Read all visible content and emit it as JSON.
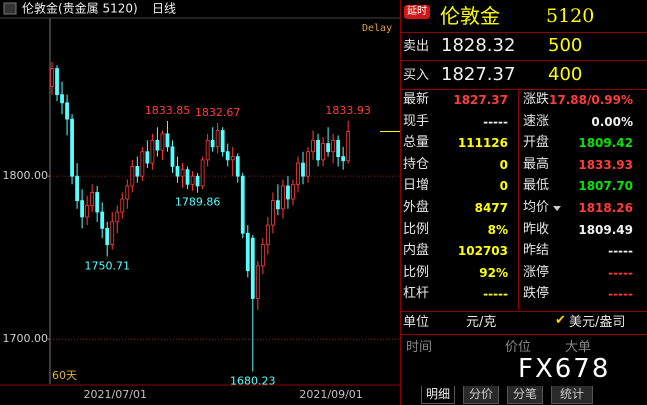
{
  "top_bar": {
    "instrument": "伦敦金(贵金属 5120)",
    "period": "日线",
    "delay": "Delay",
    "range": "60天"
  },
  "chart_data": {
    "type": "candlestick",
    "categories": [
      null,
      null,
      null,
      null,
      null,
      null,
      null,
      null,
      null,
      null,
      null,
      null,
      null,
      "2021/07/01",
      null,
      null,
      null,
      null,
      null,
      null,
      null,
      null,
      null,
      null,
      null,
      null,
      null,
      null,
      null,
      null,
      null,
      null,
      null,
      null,
      null,
      null,
      null,
      null,
      null,
      null,
      null,
      null,
      null,
      null,
      null,
      null,
      null,
      null,
      null,
      null,
      null,
      null,
      null,
      null,
      null,
      null,
      "2021/09/01",
      null,
      null,
      null
    ],
    "open": [
      1855,
      1866,
      1850,
      1845,
      1835,
      1800,
      1785,
      1775,
      1782,
      1790,
      1778,
      1768,
      1758,
      1772,
      1778,
      1786,
      1794,
      1806,
      1800,
      1815,
      1808,
      1822,
      1816,
      1826,
      1818,
      1806,
      1800,
      1804,
      1795,
      1800,
      1794,
      1810,
      1822,
      1818,
      1828,
      1815,
      1810,
      1812,
      1800,
      1765,
      1762,
      1725,
      1745,
      1758,
      1770,
      1785,
      1780,
      1794,
      1786,
      1795,
      1808,
      1800,
      1815,
      1822,
      1810,
      1820,
      1815,
      1822,
      1812,
      1809.42
    ],
    "high": [
      1870,
      1868,
      1858,
      1850,
      1838,
      1808,
      1792,
      1788,
      1795,
      1794,
      1784,
      1772,
      1778,
      1782,
      1790,
      1798,
      1810,
      1812,
      1818,
      1822,
      1826,
      1830,
      1828,
      1833.85,
      1822,
      1812,
      1808,
      1806,
      1803,
      1802,
      1812,
      1826,
      1830,
      1832.67,
      1830,
      1820,
      1818,
      1814,
      1802,
      1770,
      1764,
      1748,
      1762,
      1775,
      1790,
      1795,
      1798,
      1800,
      1798,
      1812,
      1815,
      1818,
      1828,
      1826,
      1824,
      1830,
      1826,
      1825,
      1818,
      1833.93
    ],
    "low": [
      1850,
      1846,
      1838,
      1825,
      1795,
      1780,
      1768,
      1770,
      1778,
      1772,
      1762,
      1750.71,
      1755,
      1765,
      1774,
      1780,
      1790,
      1796,
      1797,
      1805,
      1804,
      1812,
      1810,
      1815,
      1802,
      1796,
      1793,
      1792,
      1791,
      1789.86,
      1792,
      1806,
      1815,
      1814,
      1812,
      1806,
      1800,
      1796,
      1762,
      1738,
      1680.23,
      1718,
      1740,
      1752,
      1765,
      1776,
      1774,
      1780,
      1782,
      1790,
      1795,
      1796,
      1810,
      1806,
      1806,
      1812,
      1808,
      1806,
      1804,
      1807.7
    ],
    "close": [
      1866,
      1850,
      1845,
      1835,
      1800,
      1785,
      1775,
      1782,
      1790,
      1778,
      1768,
      1758,
      1772,
      1778,
      1786,
      1794,
      1806,
      1800,
      1815,
      1808,
      1822,
      1816,
      1826,
      1818,
      1806,
      1800,
      1804,
      1795,
      1800,
      1794,
      1810,
      1822,
      1818,
      1828,
      1815,
      1810,
      1812,
      1800,
      1765,
      1742,
      1725,
      1745,
      1758,
      1770,
      1785,
      1780,
      1794,
      1786,
      1795,
      1808,
      1800,
      1815,
      1822,
      1810,
      1820,
      1815,
      1822,
      1812,
      1809.49,
      1827.37
    ],
    "up_color": "#ff3c3c",
    "down_color": "#54ffff",
    "annotations": [
      {
        "index": 11,
        "field": "low"
      },
      {
        "index": 23,
        "field": "high"
      },
      {
        "index": 29,
        "field": "low"
      },
      {
        "index": 33,
        "field": "high"
      },
      {
        "index": 40,
        "field": "low"
      },
      {
        "index": 59,
        "field": "high"
      }
    ],
    "ylim": [
      1675,
      1897
    ],
    "yticks": [
      {
        "value": 1700,
        "label": "1700.00"
      },
      {
        "value": 1800,
        "label": "1800.00"
      }
    ],
    "grid": true
  },
  "panel": {
    "header": {
      "badge": "延时",
      "name": "伦敦金",
      "code": "5120"
    },
    "sell": {
      "label": "卖出",
      "price": "1828.32",
      "volume": "500"
    },
    "buy": {
      "label": "买入",
      "price": "1827.37",
      "volume": "400"
    },
    "rows": [
      [
        "最新",
        "1827.37",
        "涨跌",
        "17.88/0.99%"
      ],
      [
        "现手",
        "-----",
        "速涨",
        "0.00%"
      ],
      [
        "总量",
        "111126",
        "开盘",
        "1809.42"
      ],
      [
        "持仓",
        "0",
        "最高",
        "1833.93"
      ],
      [
        "日增",
        "0",
        "最低",
        "1807.70"
      ],
      [
        "外盘",
        "8477",
        "均价",
        "1818.26"
      ],
      [
        "比例",
        "8%",
        "昨收",
        "1809.49"
      ],
      [
        "内盘",
        "102703",
        "昨结",
        "-----"
      ],
      [
        "比例",
        "92%",
        "涨停",
        "-----"
      ],
      [
        "杠杆",
        "-----",
        "跌停",
        "-----"
      ]
    ],
    "unit": {
      "label": "单位",
      "value": "元/克",
      "option": "美元/盎司"
    },
    "ticks_header": [
      "时间",
      "价位",
      "大单"
    ],
    "watermark": "FX678",
    "tabs": [
      "明细",
      "分价",
      "分笔",
      "统计"
    ]
  }
}
